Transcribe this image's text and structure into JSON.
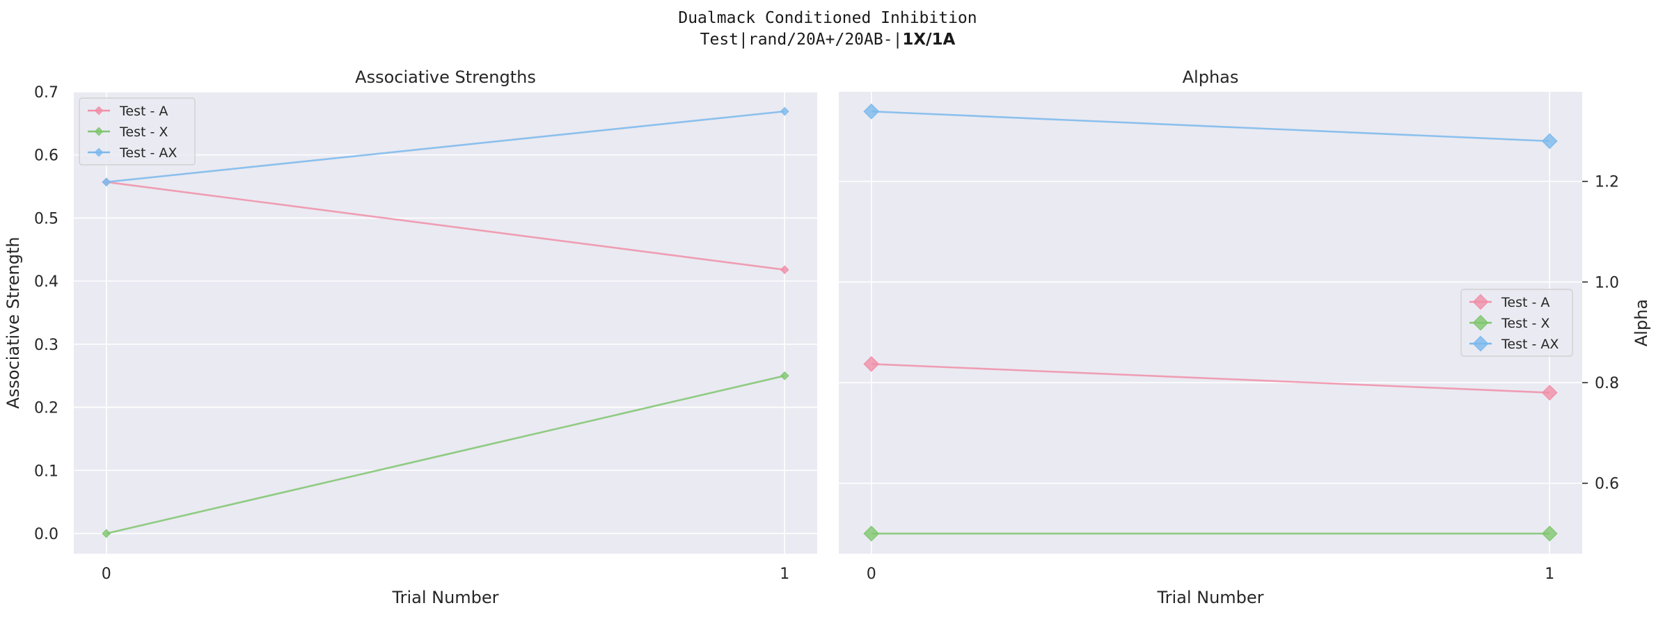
{
  "figure": {
    "title_line1": "Dualmack Conditioned Inhibition",
    "title_line2_prefix": "Test|rand/20A+/20AB-|",
    "title_line2_bold": "1X/1A",
    "background": "#ffffff",
    "panel_background": "#eaeaf2",
    "grid_color": "#ffffff"
  },
  "chart_data": [
    {
      "type": "line",
      "title": "Associative Strengths",
      "xlabel": "Trial Number",
      "ylabel": "Associative Strength",
      "x": [
        0,
        1
      ],
      "xticks": [
        "0",
        "1"
      ],
      "xlim": [
        -0.048,
        1.048
      ],
      "ylim": [
        -0.032,
        0.7
      ],
      "yticks": [
        0.0,
        0.1,
        0.2,
        0.3,
        0.4,
        0.5,
        0.6,
        0.7
      ],
      "ytick_labels": [
        "0.0",
        "0.1",
        "0.2",
        "0.3",
        "0.4",
        "0.5",
        "0.6",
        "0.7"
      ],
      "yaxis_side": "left",
      "grid": true,
      "legend": "upper-left",
      "marker": "diamond-small",
      "series": [
        {
          "name": "Test - A",
          "color": "#f08fa8",
          "values": [
            0.557,
            0.418
          ]
        },
        {
          "name": "Test - X",
          "color": "#7fc66f",
          "values": [
            0.0,
            0.25
          ]
        },
        {
          "name": "Test - AX",
          "color": "#7ab9ec",
          "values": [
            0.557,
            0.669
          ]
        }
      ]
    },
    {
      "type": "line",
      "title": "Alphas",
      "xlabel": "Trial Number",
      "ylabel": "Alpha",
      "x": [
        0,
        1
      ],
      "xticks": [
        "0",
        "1"
      ],
      "xlim": [
        -0.048,
        1.048
      ],
      "ylim": [
        0.46,
        1.378
      ],
      "yticks": [
        0.6,
        0.8,
        1.0,
        1.2
      ],
      "ytick_labels": [
        "0.6",
        "0.8",
        "1.0",
        "1.2"
      ],
      "yaxis_side": "right",
      "grid": true,
      "legend": "center-right",
      "marker": "diamond-large",
      "series": [
        {
          "name": "Test - A",
          "color": "#f08fa8",
          "values": [
            0.837,
            0.78
          ]
        },
        {
          "name": "Test - X",
          "color": "#7fc66f",
          "values": [
            0.5,
            0.5
          ]
        },
        {
          "name": "Test - AX",
          "color": "#7ab9ec",
          "values": [
            1.339,
            1.28
          ]
        }
      ]
    }
  ]
}
